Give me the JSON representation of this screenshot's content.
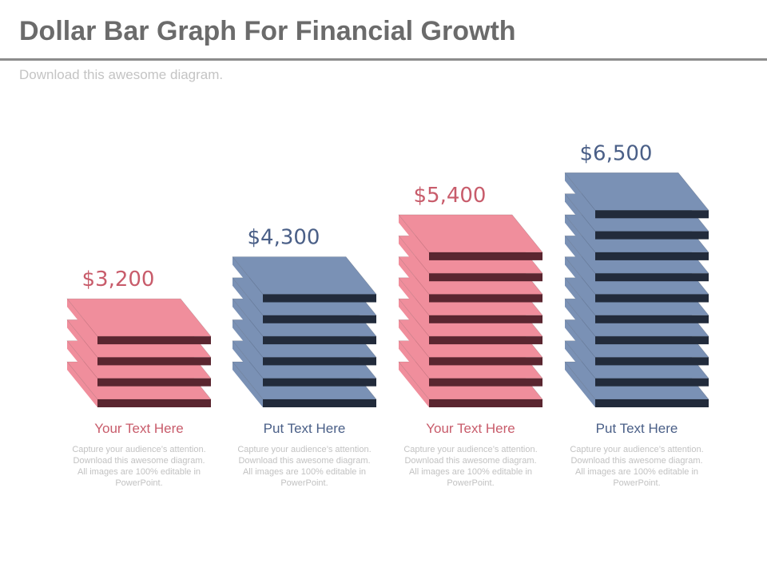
{
  "header": {
    "title": "Dollar Bar Graph For Financial Growth",
    "subtitle": "Download this awesome diagram."
  },
  "colors": {
    "pink_top": "#f08e9c",
    "pink_side": "#5a2630",
    "blue_top": "#7a91b5",
    "blue_side": "#222b3b",
    "pink_text": "#c85c6b",
    "blue_text": "#4a5f87"
  },
  "chart_data": {
    "type": "bar",
    "style": "stacked-3d-plates",
    "categories": [
      "Your Text Here",
      "Put Text Here",
      "Your Text Here",
      "Put Text Here"
    ],
    "values": [
      3200,
      4300,
      5400,
      6500
    ],
    "value_labels": [
      "$3,200",
      "$4,300",
      "$5,400",
      "$6,500"
    ],
    "plates": [
      4,
      6,
      8,
      10
    ],
    "bar_colors": [
      "pink",
      "blue",
      "pink",
      "blue"
    ],
    "title": "Dollar Bar Graph For Financial Growth"
  },
  "items": [
    {
      "heading": "Your Text Here",
      "description": "Capture your audience’s attention. Download this awesome diagram. All images are 100% editable in PowerPoint."
    },
    {
      "heading": "Put Text Here",
      "description": "Capture your audience’s attention. Download this awesome diagram. All images are 100% editable in PowerPoint."
    },
    {
      "heading": "Your Text Here",
      "description": "Capture your audience’s attention. Download this awesome diagram. All images are 100% editable in PowerPoint."
    },
    {
      "heading": "Put Text Here",
      "description": "Capture your audience’s attention. Download this awesome diagram. All images are 100% editable in PowerPoint."
    }
  ]
}
